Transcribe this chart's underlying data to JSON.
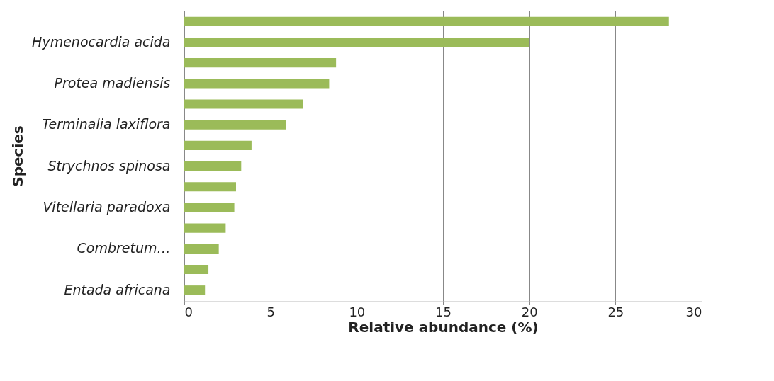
{
  "chart_data": {
    "type": "bar",
    "orientation": "horizontal",
    "xlabel": "Relative abundance (%)",
    "ylabel": "Species",
    "categories": [
      null,
      "Hymenocardia  acida",
      null,
      "Protea madiensis",
      null,
      "Terminalia laxiflora",
      null,
      "Strychnos spinosa",
      null,
      "Vitellaria paradoxa",
      null,
      "Combretum…",
      null,
      "Entada africana"
    ],
    "values": [
      28.1,
      20.0,
      8.8,
      8.4,
      6.9,
      5.9,
      3.9,
      3.3,
      3.0,
      2.9,
      2.4,
      2.0,
      1.4,
      1.2
    ],
    "color": "#9bbb59",
    "xlim": [
      0,
      30
    ],
    "xticks": [
      0,
      5,
      10,
      15,
      20,
      25,
      30
    ],
    "grid": "x"
  }
}
